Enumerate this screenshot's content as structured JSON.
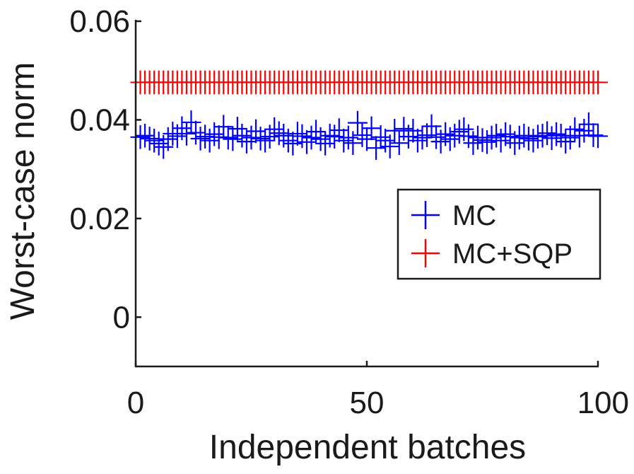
{
  "chart_data": {
    "type": "scatter",
    "xlabel": "Independent batches",
    "ylabel": "Worst-case norm",
    "xlim": [
      0,
      100
    ],
    "ylim": [
      -0.01,
      0.06
    ],
    "xticks": [
      0,
      50,
      100
    ],
    "xtick_labels": [
      "0",
      "50",
      "100"
    ],
    "yticks": [
      0,
      0.02,
      0.04,
      0.06
    ],
    "ytick_labels": [
      "0",
      "0.02",
      "0.04",
      "0.06"
    ],
    "grid": false,
    "legend_position": "right",
    "marker": "plus",
    "series": [
      {
        "name": "MC",
        "color": "#0000ff",
        "x": [
          1,
          2,
          3,
          4,
          5,
          6,
          7,
          8,
          9,
          10,
          11,
          12,
          13,
          14,
          15,
          16,
          17,
          18,
          19,
          20,
          21,
          22,
          23,
          24,
          25,
          26,
          27,
          28,
          29,
          30,
          31,
          32,
          33,
          34,
          35,
          36,
          37,
          38,
          39,
          40,
          41,
          42,
          43,
          44,
          45,
          46,
          47,
          48,
          49,
          50,
          51,
          52,
          53,
          54,
          55,
          56,
          57,
          58,
          59,
          60,
          61,
          62,
          63,
          64,
          65,
          66,
          67,
          68,
          69,
          70,
          71,
          72,
          73,
          74,
          75,
          76,
          77,
          78,
          79,
          80,
          81,
          82,
          83,
          84,
          85,
          86,
          87,
          88,
          89,
          90,
          91,
          92,
          93,
          94,
          95,
          96,
          97,
          98,
          99,
          100
        ],
        "y": [
          0.0365,
          0.0368,
          0.0362,
          0.0358,
          0.0352,
          0.0345,
          0.0361,
          0.0372,
          0.0367,
          0.0383,
          0.0372,
          0.0395,
          0.0374,
          0.0362,
          0.0366,
          0.0358,
          0.0371,
          0.0365,
          0.0386,
          0.0364,
          0.0361,
          0.0382,
          0.0368,
          0.0356,
          0.0364,
          0.0377,
          0.0362,
          0.0358,
          0.0366,
          0.0381,
          0.0373,
          0.0368,
          0.0358,
          0.0352,
          0.0372,
          0.0367,
          0.0355,
          0.0364,
          0.0376,
          0.0361,
          0.0352,
          0.0368,
          0.0366,
          0.0379,
          0.0358,
          0.0364,
          0.0353,
          0.0394,
          0.0369,
          0.0361,
          0.0383,
          0.0343,
          0.0365,
          0.0358,
          0.0346,
          0.0378,
          0.0353,
          0.0382,
          0.0366,
          0.0378,
          0.0358,
          0.0364,
          0.0369,
          0.0387,
          0.0365,
          0.0356,
          0.0371,
          0.0361,
          0.0368,
          0.0376,
          0.0381,
          0.0367,
          0.0353,
          0.0364,
          0.0359,
          0.0355,
          0.0364,
          0.0368,
          0.0358,
          0.0371,
          0.0366,
          0.0353,
          0.0364,
          0.0368,
          0.0362,
          0.0358,
          0.0366,
          0.0368,
          0.0373,
          0.0363,
          0.0371,
          0.0368,
          0.0356,
          0.0364,
          0.0381,
          0.0368,
          0.0378,
          0.0391,
          0.0369,
          0.0367
        ]
      },
      {
        "name": "MC+SQP",
        "color": "#ff0000",
        "x": [
          1,
          2,
          3,
          4,
          5,
          6,
          7,
          8,
          9,
          10,
          11,
          12,
          13,
          14,
          15,
          16,
          17,
          18,
          19,
          20,
          21,
          22,
          23,
          24,
          25,
          26,
          27,
          28,
          29,
          30,
          31,
          32,
          33,
          34,
          35,
          36,
          37,
          38,
          39,
          40,
          41,
          42,
          43,
          44,
          45,
          46,
          47,
          48,
          49,
          50,
          51,
          52,
          53,
          54,
          55,
          56,
          57,
          58,
          59,
          60,
          61,
          62,
          63,
          64,
          65,
          66,
          67,
          68,
          69,
          70,
          71,
          72,
          73,
          74,
          75,
          76,
          77,
          78,
          79,
          80,
          81,
          82,
          83,
          84,
          85,
          86,
          87,
          88,
          89,
          90,
          91,
          92,
          93,
          94,
          95,
          96,
          97,
          98,
          99,
          100
        ],
        "y": [
          0.0476,
          0.0476,
          0.0476,
          0.0476,
          0.0476,
          0.0476,
          0.0476,
          0.0476,
          0.0476,
          0.0476,
          0.0476,
          0.0476,
          0.0476,
          0.0476,
          0.0476,
          0.0476,
          0.0476,
          0.0476,
          0.0476,
          0.0476,
          0.0476,
          0.0476,
          0.0476,
          0.0476,
          0.0476,
          0.0476,
          0.0476,
          0.0476,
          0.0476,
          0.0476,
          0.0476,
          0.0476,
          0.0476,
          0.0476,
          0.0476,
          0.0476,
          0.0476,
          0.0476,
          0.0476,
          0.0476,
          0.0476,
          0.0476,
          0.0476,
          0.0476,
          0.0476,
          0.0476,
          0.0476,
          0.0476,
          0.0476,
          0.0476,
          0.0476,
          0.0476,
          0.0476,
          0.0476,
          0.0476,
          0.0476,
          0.0476,
          0.0476,
          0.0476,
          0.0476,
          0.0476,
          0.0476,
          0.0476,
          0.0476,
          0.0476,
          0.0476,
          0.0476,
          0.0476,
          0.0476,
          0.0476,
          0.0476,
          0.0476,
          0.0476,
          0.0476,
          0.0476,
          0.0476,
          0.0476,
          0.0476,
          0.0476,
          0.0476,
          0.0476,
          0.0476,
          0.0476,
          0.0476,
          0.0476,
          0.0476,
          0.0476,
          0.0476,
          0.0476,
          0.0476,
          0.0476,
          0.0476,
          0.0476,
          0.0476,
          0.0476,
          0.0476,
          0.0476,
          0.0476,
          0.0476,
          0.0476
        ]
      }
    ]
  }
}
